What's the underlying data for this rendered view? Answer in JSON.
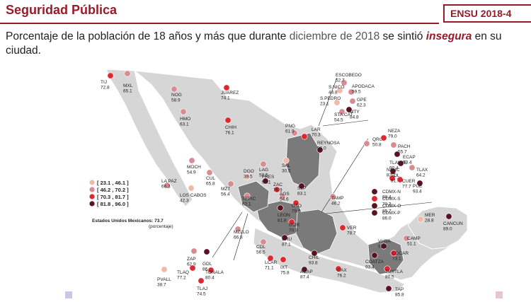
{
  "header": {
    "title": "Seguridad Pública",
    "badge": "ENSU 2018-4"
  },
  "subtitle": {
    "part1": "Porcentaje de la población de 18 años y más que durante ",
    "date": "diciembre de 2018",
    "part2": " se sintió ",
    "emphasis": "insegura",
    "part3": " en su ciudad."
  },
  "legend": {
    "ranges": [
      {
        "label": "[ 23.1 , 46.1 ]",
        "color": "#f3b8a6"
      },
      {
        "label": "[ 46.2 , 70.2 ]",
        "color": "#d98a92"
      },
      {
        "label": "[ 70.3 , 81.7 ]",
        "color": "#e0262e"
      },
      {
        "label": "[ 81.8 , 96.0 ]",
        "color": "#5a1220"
      }
    ],
    "national_label": "Estados Unidos Mexicanos: 73.7",
    "national_note": "(porcentaje)"
  },
  "colors": {
    "brand": "#9b1a2a",
    "land": "#d6d6d6",
    "highlight_states": "#7a7a7a"
  },
  "cities": [
    {
      "name": "TIJ",
      "value": "72.8"
    },
    {
      "name": "MXL",
      "value": "65.1"
    },
    {
      "name": "NOG",
      "value": "58.9"
    },
    {
      "name": "JUAREZ",
      "value": "74.1"
    },
    {
      "name": "HMO",
      "value": "63.1"
    },
    {
      "name": "CHIH",
      "value": "76.1"
    },
    {
      "name": "ESCOBEDO",
      "value": "52.7"
    },
    {
      "name": "S.NICO",
      "value": "44.8"
    },
    {
      "name": "APODACA",
      "value": "59.5"
    },
    {
      "name": "GPE",
      "value": "62.3"
    },
    {
      "name": "S.PEDRO",
      "value": "23.1"
    },
    {
      "name": "STA.CAT",
      "value": "54.5"
    },
    {
      "name": "MTY",
      "value": "84.8"
    },
    {
      "name": "PNG",
      "value": "61.9"
    },
    {
      "name": "LAR",
      "value": "70.3"
    },
    {
      "name": "REYNOSA",
      "value": "96.0"
    },
    {
      "name": "QRO",
      "value": "50.8"
    },
    {
      "name": "NEZA",
      "value": "79.0"
    },
    {
      "name": "PACH",
      "value": "55.7"
    },
    {
      "name": "ECAP",
      "value": "93.4"
    },
    {
      "name": "TLALNE",
      "value": "90.4"
    },
    {
      "name": "NAUC",
      "value": "82.1"
    },
    {
      "name": "TLAX",
      "value": "64.2"
    },
    {
      "name": "TOL",
      "value": "81.1"
    },
    {
      "name": "CUER",
      "value": "77.7"
    },
    {
      "name": "PUE",
      "value": "93.4"
    },
    {
      "name": "CDMX-N",
      "value": "88.4"
    },
    {
      "name": "CDMX-S",
      "value": "70.3"
    },
    {
      "name": "CDMX-O",
      "value": "85.7"
    },
    {
      "name": "CDMX-P",
      "value": "86.0"
    },
    {
      "name": "MOCH",
      "value": "54.9"
    },
    {
      "name": "LAG",
      "value": "50.5"
    },
    {
      "name": "SAL",
      "value": "30.5"
    },
    {
      "name": "DGO",
      "value": "39.5"
    },
    {
      "name": "LA PAZ",
      "value": "66.3"
    },
    {
      "name": "LOS CABOS",
      "value": "42.3"
    },
    {
      "name": "CUL",
      "value": "65.8"
    },
    {
      "name": "FRES",
      "value": "90.1"
    },
    {
      "name": "MZT",
      "value": "56.4"
    },
    {
      "name": "TEPIC",
      "value": "62.1"
    },
    {
      "name": "ZAC",
      "value": "76.9"
    },
    {
      "name": "AGS",
      "value": "54.6"
    },
    {
      "name": "SLP",
      "value": "83.1"
    },
    {
      "name": "GTO",
      "value": "79.6"
    },
    {
      "name": "TAMP",
      "value": "46.2"
    },
    {
      "name": "LEON",
      "value": "81.8"
    },
    {
      "name": "MOR",
      "value": "70.9"
    },
    {
      "name": "MZLLO",
      "value": "66.8"
    },
    {
      "name": "CDL",
      "value": "56.5"
    },
    {
      "name": "URU",
      "value": "87.1"
    },
    {
      "name": "VER",
      "value": "78.7"
    },
    {
      "name": "MER",
      "value": "28.8"
    },
    {
      "name": "CANCUN",
      "value": "89.0"
    },
    {
      "name": "CAMP",
      "value": "51.1"
    },
    {
      "name": "VHSA",
      "value": "92.3"
    },
    {
      "name": "CDCAR",
      "value": "73.1"
    },
    {
      "name": "ZAP",
      "value": "62.9"
    },
    {
      "name": "GDL",
      "value": "86.8"
    },
    {
      "name": "LCAR",
      "value": "71.1"
    },
    {
      "name": "IXT",
      "value": "75.8"
    },
    {
      "name": "CHIL",
      "value": "93.8"
    },
    {
      "name": "COATZA",
      "value": "93.4"
    },
    {
      "name": "TUXTLA",
      "value": "80.5"
    },
    {
      "name": "TONALA",
      "value": "80.4"
    },
    {
      "name": "PVALL",
      "value": "38.7"
    },
    {
      "name": "TLAQ",
      "value": "77.2"
    },
    {
      "name": "OAX",
      "value": "76.2"
    },
    {
      "name": "ACAP",
      "value": "87.4"
    },
    {
      "name": "TLAJ",
      "value": "74.5"
    },
    {
      "name": "TAP",
      "value": "85.8"
    }
  ]
}
